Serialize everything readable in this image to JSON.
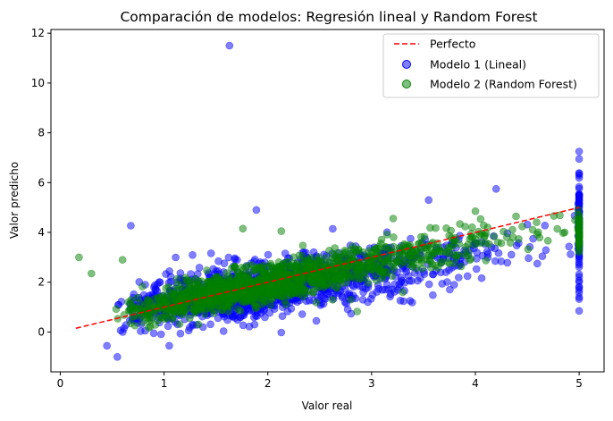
{
  "chart_data": {
    "type": "scatter",
    "title": "Comparación de modelos: Regresión lineal y Random Forest",
    "xlabel": "Valor real",
    "ylabel": "Valor predicho",
    "xlim": [
      -0.09,
      5.24
    ],
    "ylim": [
      -1.6,
      12.15
    ],
    "xticks": [
      0,
      1,
      2,
      3,
      4,
      5
    ],
    "yticks": [
      0,
      2,
      4,
      6,
      8,
      10,
      12
    ],
    "grid": false,
    "legend_position": "top-right",
    "legend": [
      {
        "label": "Perfecto",
        "kind": "dashed-line",
        "color": "#ff0000"
      },
      {
        "label": "Modelo 1 (Lineal)",
        "kind": "marker",
        "color": "#0000ff"
      },
      {
        "label": "Modelo 2 (Random Forest)",
        "kind": "marker",
        "color": "#008000"
      }
    ],
    "reference_line": {
      "name": "Perfecto",
      "x": [
        0.15,
        5.0
      ],
      "y": [
        0.15,
        5.0
      ],
      "color": "#ff0000"
    },
    "series": [
      {
        "name": "Modelo 1 (Lineal)",
        "color": "#0000ff",
        "alpha": 0.5,
        "trend": {
          "intercept": 0.45,
          "slope": 0.67
        },
        "spread": 0.55,
        "x_range": [
          0.15,
          5.0
        ],
        "approx_point_count": 4128,
        "notable_points": [
          [
            1.63,
            11.5
          ],
          [
            0.68,
            4.27
          ],
          [
            1.89,
            4.9
          ],
          [
            3.55,
            5.3
          ],
          [
            4.2,
            5.75
          ],
          [
            0.55,
            -1.0
          ],
          [
            0.45,
            -0.55
          ],
          [
            1.05,
            -0.55
          ],
          [
            2.13,
            -0.02
          ],
          [
            5.0,
            7.25
          ],
          [
            5.0,
            6.95
          ],
          [
            5.0,
            0.85
          ]
        ]
      },
      {
        "name": "Modelo 2 (Random Forest)",
        "color": "#008000",
        "alpha": 0.5,
        "trend": {
          "intercept": 0.3,
          "slope": 0.82
        },
        "spread": 0.38,
        "x_range": [
          0.15,
          5.0
        ],
        "approx_point_count": 4128,
        "notable_points": [
          [
            0.18,
            3.0
          ],
          [
            0.3,
            2.35
          ],
          [
            0.6,
            2.9
          ],
          [
            1.76,
            4.15
          ],
          [
            2.13,
            4.05
          ],
          [
            2.8,
            1.3
          ],
          [
            3.3,
            1.6
          ],
          [
            4.86,
            4.0
          ],
          [
            4.0,
            4.85
          ]
        ]
      }
    ]
  }
}
